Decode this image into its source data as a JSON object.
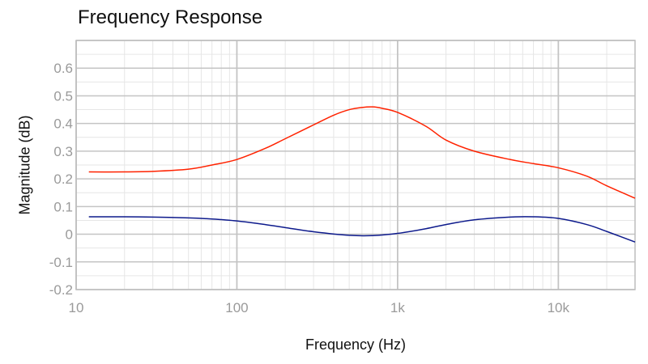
{
  "chart_data": {
    "type": "line",
    "title": "Frequency Response",
    "xlabel": "Frequency (Hz)",
    "ylabel": "Magnitude (dB)",
    "x_scale": "log",
    "xlim": [
      10,
      30000
    ],
    "ylim": [
      -0.2,
      0.7
    ],
    "grid": true,
    "x_ticks": [
      {
        "value": 10,
        "label": "10"
      },
      {
        "value": 100,
        "label": "100"
      },
      {
        "value": 1000,
        "label": "1k"
      },
      {
        "value": 10000,
        "label": "10k"
      }
    ],
    "y_ticks": [
      {
        "value": 0.6,
        "label": "0.6"
      },
      {
        "value": 0.5,
        "label": "0.5"
      },
      {
        "value": 0.4,
        "label": "0.4"
      },
      {
        "value": 0.3,
        "label": "0.3"
      },
      {
        "value": 0.2,
        "label": "0.2"
      },
      {
        "value": 0.1,
        "label": "0.1"
      },
      {
        "value": 0,
        "label": "0"
      },
      {
        "value": -0.1,
        "label": "-0.1"
      },
      {
        "value": -0.2,
        "label": "-0.2"
      }
    ],
    "series": [
      {
        "color": "#ff2200",
        "x": [
          12,
          20,
          30,
          50,
          70,
          100,
          150,
          200,
          300,
          400,
          500,
          600,
          700,
          800,
          1000,
          1500,
          2000,
          3000,
          5000,
          7000,
          10000,
          15000,
          20000,
          30000
        ],
        "y": [
          0.225,
          0.225,
          0.227,
          0.235,
          0.25,
          0.27,
          0.31,
          0.345,
          0.395,
          0.43,
          0.45,
          0.458,
          0.46,
          0.455,
          0.44,
          0.39,
          0.34,
          0.3,
          0.27,
          0.255,
          0.24,
          0.21,
          0.175,
          0.13
        ]
      },
      {
        "color": "#0d1a8c",
        "x": [
          12,
          20,
          30,
          50,
          70,
          100,
          150,
          200,
          300,
          500,
          700,
          1000,
          1500,
          2000,
          3000,
          5000,
          7000,
          10000,
          15000,
          20000,
          30000
        ],
        "y": [
          0.063,
          0.063,
          0.062,
          0.059,
          0.055,
          0.048,
          0.035,
          0.024,
          0.009,
          -0.004,
          -0.005,
          0.003,
          0.02,
          0.035,
          0.052,
          0.062,
          0.063,
          0.057,
          0.035,
          0.01,
          -0.028
        ]
      }
    ]
  }
}
